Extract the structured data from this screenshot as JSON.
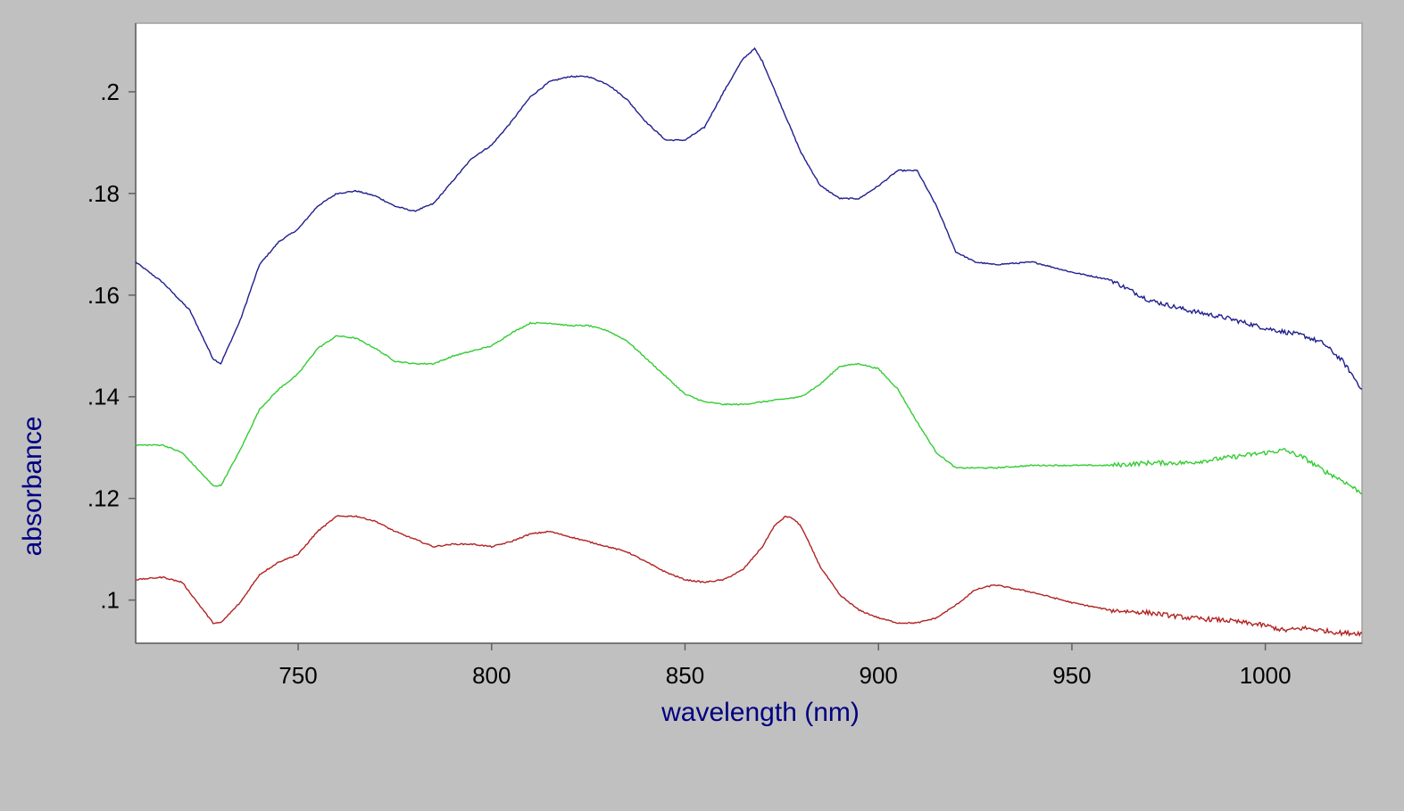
{
  "colors": {
    "background": "#c0c0c0",
    "plot_background": "#ffffff",
    "axis_title": "#000080",
    "tick_text": "#000000"
  },
  "chart_data": {
    "type": "line",
    "title": "",
    "xlabel": "wavelength (nm)",
    "ylabel": "absorbance",
    "xlim": [
      708,
      1025
    ],
    "ylim": [
      0.0915,
      0.2135
    ],
    "grid": false,
    "x_ticks": [
      750,
      800,
      850,
      900,
      950,
      1000
    ],
    "x_tick_labels": [
      "750",
      "800",
      "850",
      "900",
      "950",
      "1000"
    ],
    "y_ticks": [
      0.1,
      0.12,
      0.14,
      0.16,
      0.18,
      0.2
    ],
    "y_tick_labels": [
      ".1",
      ".12",
      ".14",
      ".16",
      ".18",
      ".2"
    ],
    "series": [
      {
        "color": "#1f1f8f",
        "x": [
          708,
          715,
          722,
          728,
          730,
          735,
          740,
          745,
          750,
          755,
          760,
          765,
          770,
          775,
          780,
          785,
          790,
          795,
          800,
          805,
          810,
          815,
          820,
          825,
          830,
          835,
          840,
          845,
          850,
          855,
          860,
          865,
          868,
          870,
          875,
          880,
          885,
          890,
          895,
          900,
          905,
          910,
          915,
          920,
          925,
          930,
          940,
          950,
          960,
          970,
          980,
          990,
          1000,
          1010,
          1015,
          1020,
          1025
        ],
        "y": [
          0.1665,
          0.1625,
          0.157,
          0.1475,
          0.1465,
          0.155,
          0.166,
          0.1705,
          0.173,
          0.1775,
          0.18,
          0.1805,
          0.1795,
          0.1775,
          0.1765,
          0.178,
          0.1825,
          0.187,
          0.1895,
          0.194,
          0.199,
          0.202,
          0.203,
          0.203,
          0.2015,
          0.1985,
          0.194,
          0.1905,
          0.1905,
          0.193,
          0.2,
          0.2065,
          0.2085,
          0.206,
          0.197,
          0.188,
          0.1815,
          0.179,
          0.179,
          0.1815,
          0.1845,
          0.1845,
          0.1775,
          0.1685,
          0.1665,
          0.166,
          0.1665,
          0.1645,
          0.163,
          0.159,
          0.157,
          0.1555,
          0.1535,
          0.152,
          0.1505,
          0.147,
          0.1415
        ]
      },
      {
        "color": "#33cc33",
        "x": [
          708,
          715,
          720,
          728,
          730,
          735,
          740,
          745,
          750,
          755,
          760,
          765,
          770,
          775,
          780,
          785,
          790,
          795,
          800,
          805,
          810,
          815,
          820,
          825,
          830,
          835,
          840,
          845,
          850,
          855,
          860,
          865,
          870,
          875,
          880,
          885,
          890,
          895,
          900,
          905,
          910,
          915,
          920,
          930,
          940,
          950,
          960,
          970,
          980,
          990,
          1000,
          1005,
          1010,
          1015,
          1020,
          1025
        ],
        "y": [
          0.1305,
          0.1305,
          0.129,
          0.1225,
          0.1225,
          0.1295,
          0.1375,
          0.1415,
          0.1445,
          0.1495,
          0.152,
          0.1515,
          0.1495,
          0.147,
          0.1465,
          0.1465,
          0.148,
          0.149,
          0.15,
          0.1525,
          0.1545,
          0.1545,
          0.154,
          0.154,
          0.153,
          0.151,
          0.1475,
          0.144,
          0.1405,
          0.139,
          0.1385,
          0.1385,
          0.139,
          0.1395,
          0.14,
          0.1425,
          0.146,
          0.1465,
          0.1455,
          0.1415,
          0.135,
          0.129,
          0.126,
          0.126,
          0.1265,
          0.1265,
          0.1265,
          0.127,
          0.127,
          0.128,
          0.129,
          0.1295,
          0.128,
          0.1255,
          0.1235,
          0.121
        ]
      },
      {
        "color": "#b22222",
        "x": [
          708,
          715,
          720,
          728,
          730,
          735,
          740,
          745,
          750,
          755,
          760,
          765,
          770,
          775,
          780,
          785,
          790,
          795,
          800,
          805,
          810,
          815,
          820,
          825,
          830,
          835,
          840,
          845,
          850,
          855,
          860,
          865,
          870,
          873,
          876,
          878,
          880,
          885,
          890,
          895,
          900,
          905,
          910,
          915,
          920,
          925,
          930,
          940,
          950,
          960,
          970,
          980,
          990,
          1000,
          1005,
          1010,
          1015,
          1020,
          1025
        ],
        "y": [
          0.104,
          0.1045,
          0.1035,
          0.0955,
          0.0955,
          0.0995,
          0.105,
          0.1075,
          0.109,
          0.1135,
          0.1165,
          0.1165,
          0.1155,
          0.1135,
          0.112,
          0.1105,
          0.111,
          0.111,
          0.1105,
          0.1115,
          0.113,
          0.1135,
          0.1125,
          0.1115,
          0.1105,
          0.1095,
          0.1075,
          0.1055,
          0.104,
          0.1035,
          0.104,
          0.106,
          0.1105,
          0.1145,
          0.1165,
          0.116,
          0.1145,
          0.1065,
          0.101,
          0.098,
          0.0965,
          0.0955,
          0.0955,
          0.0965,
          0.099,
          0.102,
          0.103,
          0.1015,
          0.0995,
          0.098,
          0.0975,
          0.0965,
          0.096,
          0.095,
          0.094,
          0.0945,
          0.094,
          0.0935,
          0.0935
        ]
      }
    ]
  }
}
